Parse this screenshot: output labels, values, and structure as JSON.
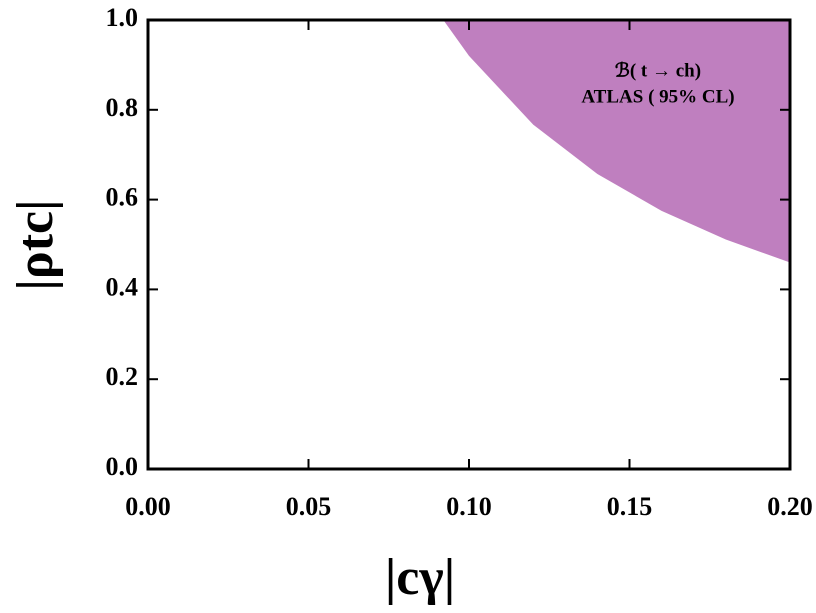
{
  "chart_data": {
    "type": "region",
    "xlabel": "|cγ|",
    "ylabel": "|ρtc|",
    "annotation": [
      "ℬ( t → ch)",
      "ATLAS ( 95% CL)"
    ],
    "series": [
      {
        "x": [
          0.092,
          0.1,
          0.12,
          0.14,
          0.16,
          0.18,
          0.2
        ],
        "y": [
          1.0,
          0.92,
          0.767,
          0.657,
          0.575,
          0.511,
          0.46
        ],
        "color": "#bf7fbf",
        "fill_to": "top"
      }
    ],
    "xlim": [
      0,
      0.2
    ],
    "ylim": [
      0,
      1.0
    ],
    "xticks": [
      {
        "value": 0,
        "label": "0.00"
      },
      0.05,
      {
        "value": 0.1,
        "label": "0.10"
      },
      0.15,
      {
        "value": 0.2,
        "label": "0.20"
      }
    ],
    "yticks": [
      {
        "value": 0,
        "label": "0.0"
      },
      0.2,
      0.4,
      0.6,
      0.8,
      {
        "value": 1.0,
        "label": "1.0"
      }
    ],
    "grid": false
  }
}
